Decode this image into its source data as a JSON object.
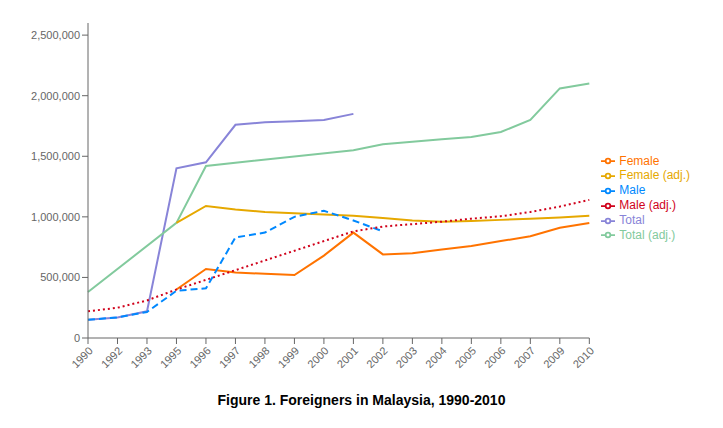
{
  "chart_data": {
    "type": "line",
    "title": "Figure 1. Foreigners in Malaysia, 1990-2010",
    "categories": [
      "1990",
      "1992",
      "1993",
      "1995",
      "1996",
      "1997",
      "1998",
      "1999",
      "2000",
      "2001",
      "2002",
      "2003",
      "2004",
      "2005",
      "2006",
      "2007",
      "2009",
      "2010"
    ],
    "series": [
      {
        "name": "Total",
        "color": "#8884d8",
        "line_style": "solid",
        "values": [
          150000,
          170000,
          220000,
          1400000,
          1450000,
          1760000,
          1780000,
          1790000,
          1800000,
          1850000,
          null,
          null,
          null,
          null,
          null,
          null,
          null,
          null
        ]
      },
      {
        "name": "Total (adj.)",
        "color": "#82ca9d",
        "line_style": "solid",
        "values": [
          380000,
          null,
          null,
          950000,
          1420000,
          null,
          null,
          null,
          null,
          1550000,
          1600000,
          1620000,
          1640000,
          1660000,
          1700000,
          1800000,
          2060000,
          2100000
        ]
      },
      {
        "name": "Female",
        "color": "#ff7300",
        "line_style": "solid",
        "values": [
          null,
          null,
          null,
          400000,
          570000,
          540000,
          530000,
          520000,
          680000,
          870000,
          690000,
          700000,
          730000,
          760000,
          800000,
          840000,
          910000,
          950000
        ]
      },
      {
        "name": "Female (adj.)",
        "color": "#e6a800",
        "line_style": "solid",
        "values": [
          null,
          null,
          null,
          950000,
          1090000,
          1060000,
          1040000,
          1030000,
          1020000,
          1010000,
          990000,
          970000,
          960000,
          965000,
          975000,
          985000,
          995000,
          1010000
        ]
      },
      {
        "name": "Male",
        "color": "#0088fe",
        "line_style": "dashed",
        "values": [
          150000,
          170000,
          215000,
          390000,
          410000,
          830000,
          870000,
          1000000,
          1050000,
          970000,
          880000,
          null,
          null,
          null,
          null,
          null,
          null,
          null
        ]
      },
      {
        "name": "Male (adj.)",
        "color": "#d0021b",
        "line_style": "dotted",
        "values": [
          220000,
          250000,
          310000,
          400000,
          null,
          null,
          null,
          null,
          null,
          880000,
          920000,
          940000,
          960000,
          985000,
          1005000,
          1040000,
          1085000,
          1140000
        ]
      }
    ],
    "ylim": [
      0,
      2600000
    ],
    "yticks": [
      0,
      {
        "value": 500000,
        "label": "500,000"
      },
      {
        "value": 1000000,
        "label": "1,000,000"
      },
      {
        "value": 1500000,
        "label": "1,500,000"
      },
      {
        "value": 2000000,
        "label": "2,000,000"
      },
      {
        "value": 2500000,
        "label": "2,500,000"
      }
    ],
    "grid": false,
    "legend": "right"
  }
}
